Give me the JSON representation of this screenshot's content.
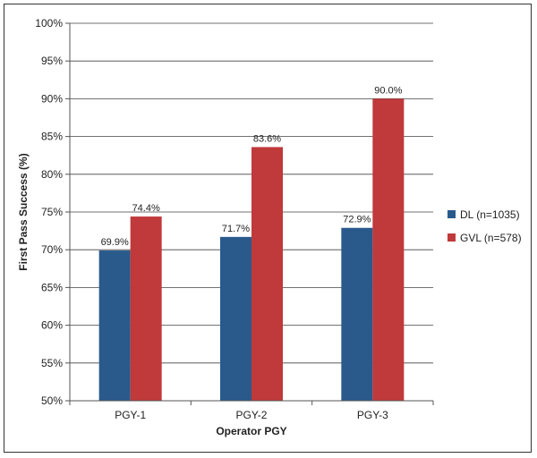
{
  "chart_data": {
    "type": "bar",
    "xlabel": "Operator PGY",
    "ylabel": "First Pass Success (%)",
    "ylim": [
      50,
      100
    ],
    "yticks": [
      50,
      55,
      60,
      65,
      70,
      75,
      80,
      85,
      90,
      95,
      100
    ],
    "ytick_labels": [
      "50%",
      "55%",
      "60%",
      "65%",
      "70%",
      "75%",
      "80%",
      "85%",
      "90%",
      "95%",
      "100%"
    ],
    "categories": [
      "PGY-1",
      "PGY-2",
      "PGY-3"
    ],
    "grid": "horizontal",
    "legend_position": "right",
    "series": [
      {
        "name": "DL (n=1035)",
        "color": "#2a5a8c",
        "values": [
          69.9,
          71.7,
          72.9
        ],
        "labels": [
          "69.9%",
          "71.7%",
          "72.9%"
        ]
      },
      {
        "name": "GVL (n=578)",
        "color": "#c0393b",
        "values": [
          74.4,
          83.6,
          90.0
        ],
        "labels": [
          "74.4%",
          "83.6%",
          "90.0%"
        ]
      }
    ]
  }
}
